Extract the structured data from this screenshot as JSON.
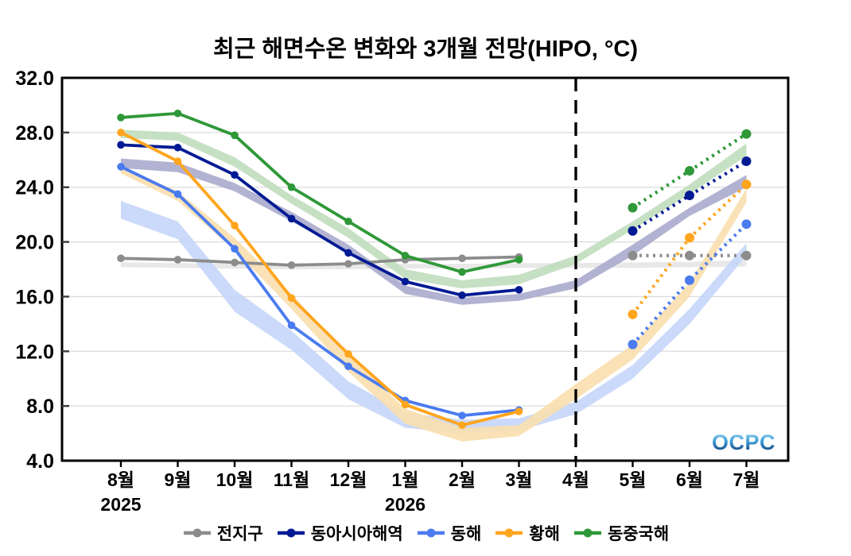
{
  "logo": {
    "text": "OCPC"
  },
  "chart_data": {
    "type": "line",
    "title": "최근 해면수온 변화와 3개월 전망(HIPO, °C)",
    "unit": "°C",
    "ylim": [
      4,
      32
    ],
    "grid": "horizontal",
    "legend_position": "bottom",
    "y_ticks": [
      {
        "value": 4,
        "label": "4.0"
      },
      {
        "value": 8,
        "label": "8.0"
      },
      {
        "value": 12,
        "label": "12.0"
      },
      {
        "value": 16,
        "label": "16.0"
      },
      {
        "value": 20,
        "label": "20.0"
      },
      {
        "value": 24,
        "label": "24.0"
      },
      {
        "value": 28,
        "label": "28.0"
      },
      {
        "value": 32,
        "label": "32.0"
      }
    ],
    "x_months": [
      "8월",
      "9월",
      "10월",
      "11월",
      "12월",
      "1월",
      "2월",
      "3월",
      "4월",
      "5월",
      "6월",
      "7월"
    ],
    "x_years": [
      {
        "label": "2025",
        "month_index": 0
      },
      {
        "label": "2026",
        "month_index": 5
      }
    ],
    "divider_month_index": 8,
    "observed_month_indices": [
      0,
      1,
      2,
      3,
      4,
      5,
      6,
      7
    ],
    "forecast_month_indices": [
      9,
      10,
      11
    ],
    "series": [
      {
        "key": "global",
        "name": "전지구",
        "color": "#8c8c8c",
        "band_color": "#e6e6e6",
        "observed": [
          18.8,
          18.7,
          18.5,
          18.3,
          18.4,
          18.7,
          18.8,
          18.9
        ],
        "forecast": [
          19.0,
          19.0,
          19.0
        ],
        "climatology_band": [
          [
            18.15,
            18.5
          ],
          [
            18.1,
            18.45
          ],
          [
            18.05,
            18.4
          ],
          [
            18.0,
            18.35
          ],
          [
            18.0,
            18.35
          ],
          [
            18.05,
            18.4
          ],
          [
            18.05,
            18.4
          ],
          [
            18.1,
            18.45
          ],
          [
            18.1,
            18.45
          ],
          [
            18.1,
            18.5
          ],
          [
            18.15,
            18.55
          ],
          [
            18.2,
            18.65
          ]
        ]
      },
      {
        "key": "east-asia-seas",
        "name": "동아시아해역",
        "color": "#001a93",
        "band_color": "#aaaacd",
        "observed": [
          27.1,
          26.9,
          24.9,
          21.7,
          19.2,
          17.1,
          16.1,
          16.5
        ],
        "forecast": [
          20.8,
          23.4,
          25.9
        ],
        "climatology_band": [
          [
            25.4,
            26.1
          ],
          [
            25.1,
            25.8
          ],
          [
            23.7,
            24.3
          ],
          [
            21.5,
            22.2
          ],
          [
            19.2,
            19.8
          ],
          [
            16.2,
            16.8
          ],
          [
            15.4,
            15.9
          ],
          [
            15.7,
            16.2
          ],
          [
            16.6,
            17.2
          ],
          [
            19.0,
            19.8
          ],
          [
            21.9,
            22.5
          ],
          [
            24.0,
            24.9
          ]
        ]
      },
      {
        "key": "east-sea",
        "name": "동해",
        "color": "#4b7bf0",
        "band_color": "#c5d5fa",
        "observed": [
          25.5,
          23.5,
          19.5,
          13.9,
          10.9,
          8.4,
          7.3,
          7.7
        ],
        "forecast": [
          12.5,
          17.2,
          21.3
        ],
        "climatology_band": [
          [
            21.7,
            23.0
          ],
          [
            20.2,
            21.5
          ],
          [
            14.9,
            16.5
          ],
          [
            12.1,
            13.5
          ],
          [
            8.5,
            9.8
          ],
          [
            6.4,
            7.5
          ],
          [
            6.0,
            7.0
          ],
          [
            6.2,
            7.1
          ],
          [
            7.4,
            8.3
          ],
          [
            10.0,
            11.0
          ],
          [
            14.0,
            15.1
          ],
          [
            19.0,
            19.9
          ]
        ]
      },
      {
        "key": "yellow-sea",
        "name": "황해",
        "color": "#ffa51e",
        "band_color": "#fadfae",
        "observed": [
          28.0,
          25.9,
          21.2,
          15.9,
          11.8,
          8.1,
          6.6,
          7.6
        ],
        "forecast": [
          14.7,
          20.3,
          24.2
        ],
        "climatology_band": [
          [
            25.0,
            25.5
          ],
          [
            23.0,
            23.7
          ],
          [
            19.4,
            20.3
          ],
          [
            15.1,
            16.2
          ],
          [
            10.5,
            11.7
          ],
          [
            6.7,
            7.8
          ],
          [
            5.4,
            6.4
          ],
          [
            5.8,
            6.6
          ],
          [
            8.5,
            9.6
          ],
          [
            11.4,
            12.5
          ],
          [
            16.0,
            17.0
          ],
          [
            22.9,
            23.9
          ]
        ]
      },
      {
        "key": "east-china-sea",
        "name": "동중국해",
        "color": "#2f9838",
        "band_color": "#c0ddbd",
        "observed": [
          29.1,
          29.4,
          27.8,
          24.0,
          21.5,
          19.0,
          17.8,
          18.7
        ],
        "forecast": [
          22.5,
          25.2,
          27.9
        ],
        "climatology_band": [
          [
            27.6,
            28.2
          ],
          [
            27.4,
            28.0
          ],
          [
            25.5,
            26.2
          ],
          [
            22.8,
            23.4
          ],
          [
            20.3,
            21.0
          ],
          [
            17.3,
            18.0
          ],
          [
            16.6,
            17.2
          ],
          [
            16.9,
            17.6
          ],
          [
            18.4,
            19.0
          ],
          [
            20.9,
            21.5
          ],
          [
            23.5,
            24.2
          ],
          [
            26.3,
            27.2
          ]
        ]
      }
    ]
  }
}
